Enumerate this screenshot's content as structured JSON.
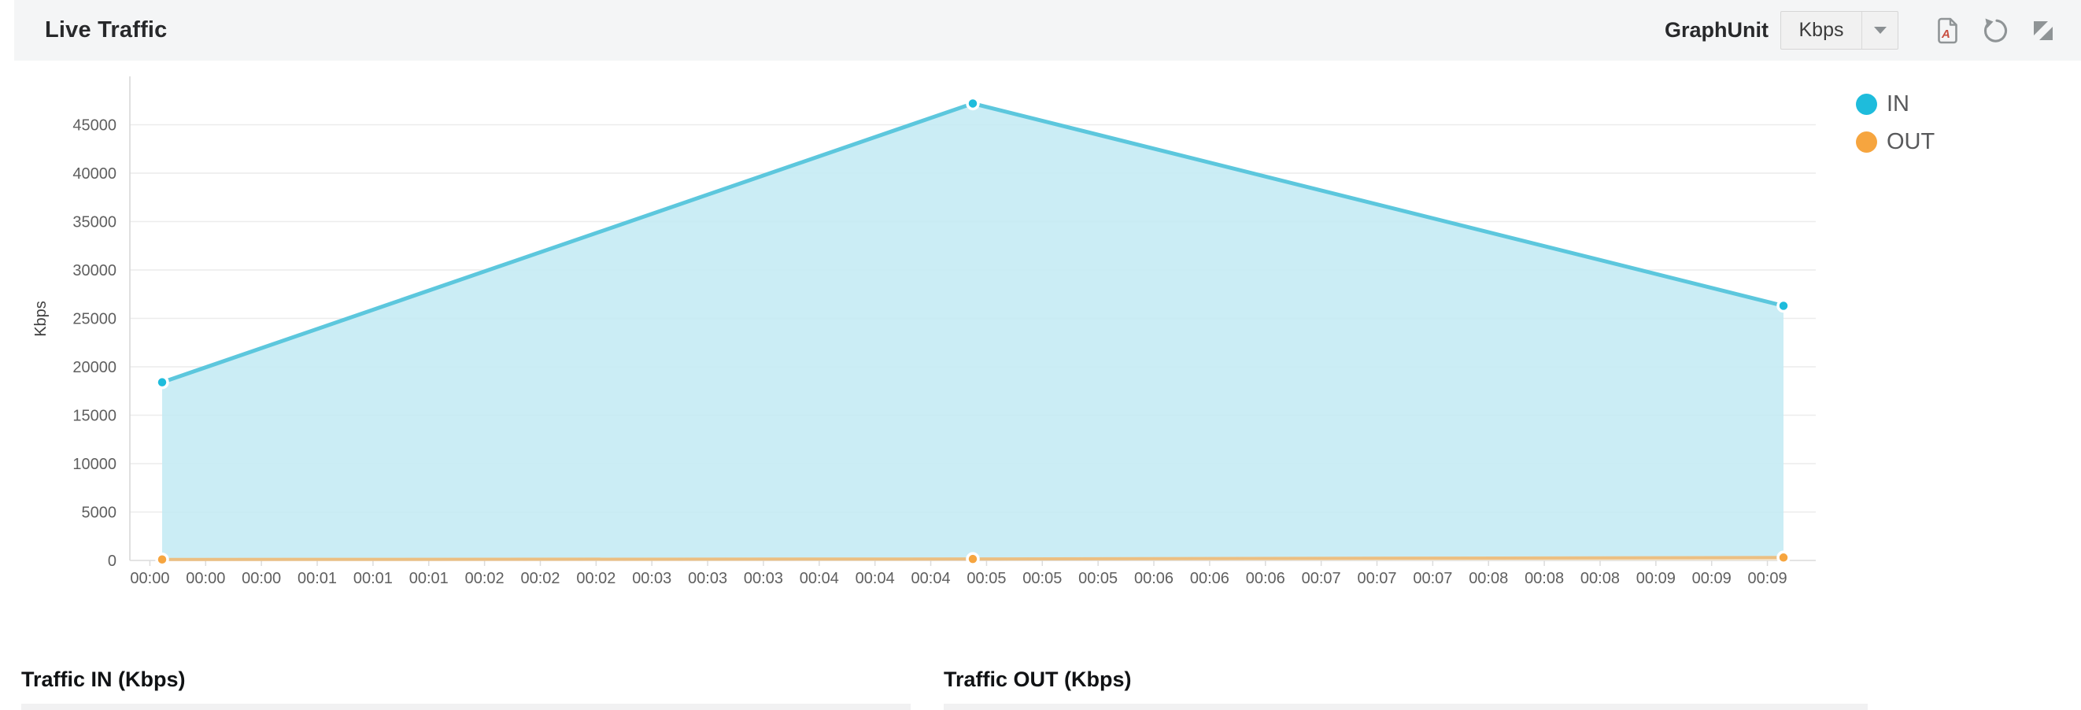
{
  "header": {
    "title": "Live Traffic",
    "graph_unit": {
      "label": "GraphUnit",
      "value": "Kbps"
    },
    "icons": {
      "pdf_export": "pdf-export-icon",
      "refresh": "refresh-icon",
      "expand": "expand-icon"
    }
  },
  "chart_data": {
    "type": "area",
    "title": "Live Traffic",
    "xlabel": "",
    "ylabel": "Kbps",
    "x_labels": [
      "00:00",
      "00:00",
      "00:00",
      "00:01",
      "00:01",
      "00:01",
      "00:02",
      "00:02",
      "00:02",
      "00:03",
      "00:03",
      "00:03",
      "00:04",
      "00:04",
      "00:04",
      "00:05",
      "00:05",
      "00:05",
      "00:06",
      "00:06",
      "00:06",
      "00:07",
      "00:07",
      "00:07",
      "00:08",
      "00:08",
      "00:08",
      "00:09",
      "00:09",
      "00:09"
    ],
    "y_ticks": [
      0,
      5000,
      10000,
      15000,
      20000,
      25000,
      30000,
      35000,
      40000,
      45000
    ],
    "ylim": [
      0,
      50000
    ],
    "grid": true,
    "legend_position": "right",
    "sample_positions": [
      0,
      0.5,
      1
    ],
    "series": [
      {
        "name": "IN",
        "values": [
          18400,
          47200,
          26300
        ],
        "line_color": "#5cc7dd",
        "fill_color": "#c5ebf4",
        "marker_color": "#1ebcdc"
      },
      {
        "name": "OUT",
        "values": [
          100,
          150,
          300
        ],
        "line_color": "#ecbf82",
        "fill_color": "#f8e7cd",
        "marker_color": "#f6a53f"
      }
    ]
  },
  "sections": {
    "traffic_in_title": "Traffic IN (Kbps)",
    "traffic_out_title": "Traffic OUT (Kbps)"
  }
}
